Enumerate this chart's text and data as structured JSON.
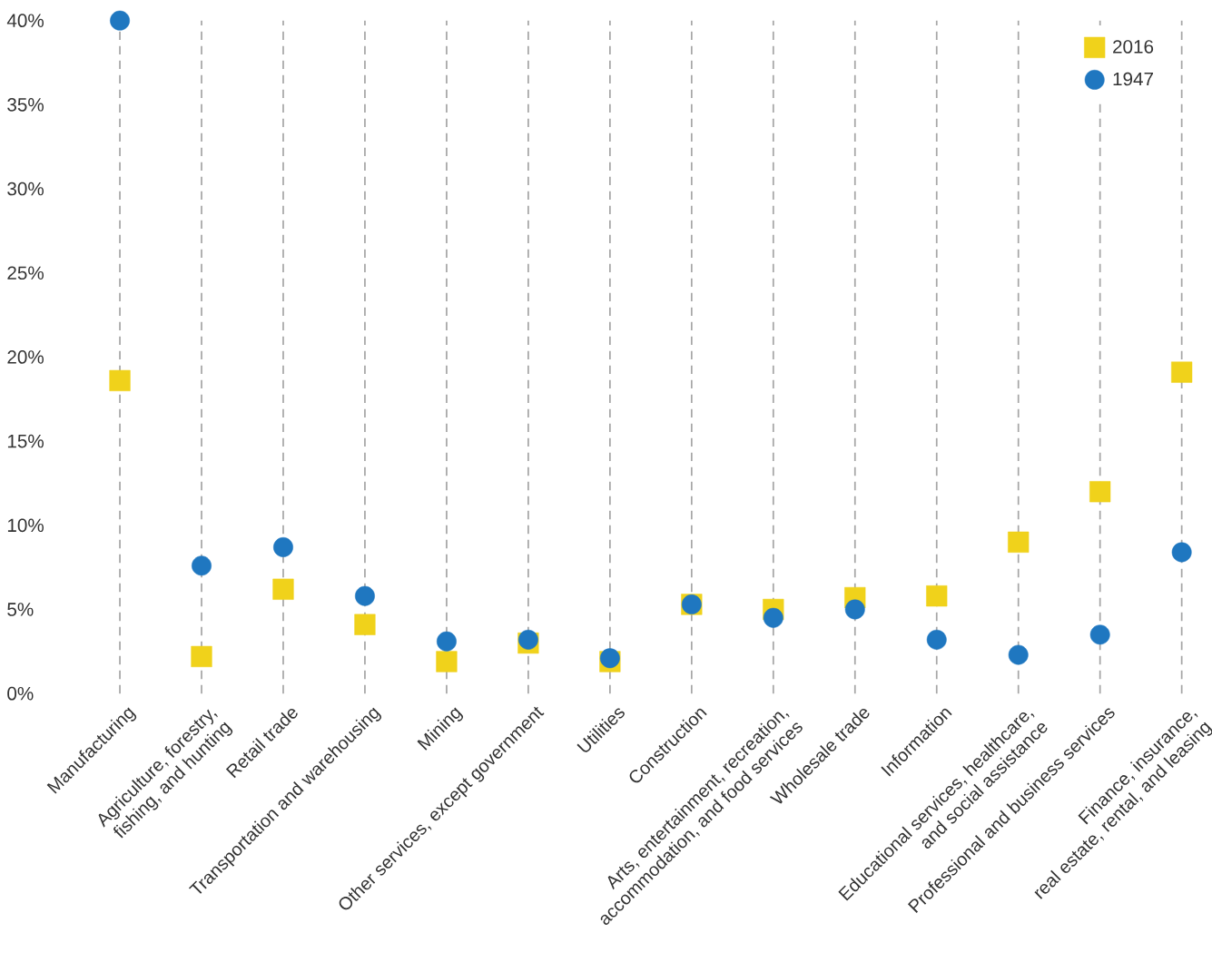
{
  "chart_data": {
    "type": "scatter",
    "categories": [
      "Manufacturing",
      "Agriculture, forestry, fishing, and hunting",
      "Retail trade",
      "Transportation and warehousing",
      "Mining",
      "Other services, except government",
      "Utilities",
      "Construction",
      "Arts, entertainment, recreation, accommodation, and food services",
      "Wholesale trade",
      "Information",
      "Educational services, healthcare, and social assistance",
      "Professional and business services",
      "Finance, insurance, real estate, rental, and leasing"
    ],
    "series": [
      {
        "name": "2016",
        "color": "#f0d21b",
        "marker": "square",
        "values": [
          18.6,
          2.2,
          6.2,
          4.1,
          1.9,
          3.0,
          1.9,
          5.3,
          5.0,
          5.7,
          5.8,
          9.0,
          12.0,
          19.1
        ]
      },
      {
        "name": "1947",
        "color": "#1f77c0",
        "marker": "circle",
        "values": [
          40.0,
          7.6,
          8.7,
          5.8,
          3.1,
          3.2,
          2.1,
          5.3,
          4.5,
          5.0,
          3.2,
          2.3,
          3.5,
          8.4
        ]
      }
    ],
    "ylim": [
      0,
      40
    ],
    "yticks": [
      {
        "value": 0,
        "label": "0%"
      },
      {
        "value": 5,
        "label": "5%"
      },
      {
        "value": 10,
        "label": "10%"
      },
      {
        "value": 15,
        "label": "15%"
      },
      {
        "value": 20,
        "label": "20%"
      },
      {
        "value": 25,
        "label": "25%"
      },
      {
        "value": 30,
        "label": "30%"
      },
      {
        "value": 35,
        "label": "35%"
      },
      {
        "value": 40,
        "label": "40%"
      }
    ],
    "grid": "x",
    "legend": "top right"
  }
}
